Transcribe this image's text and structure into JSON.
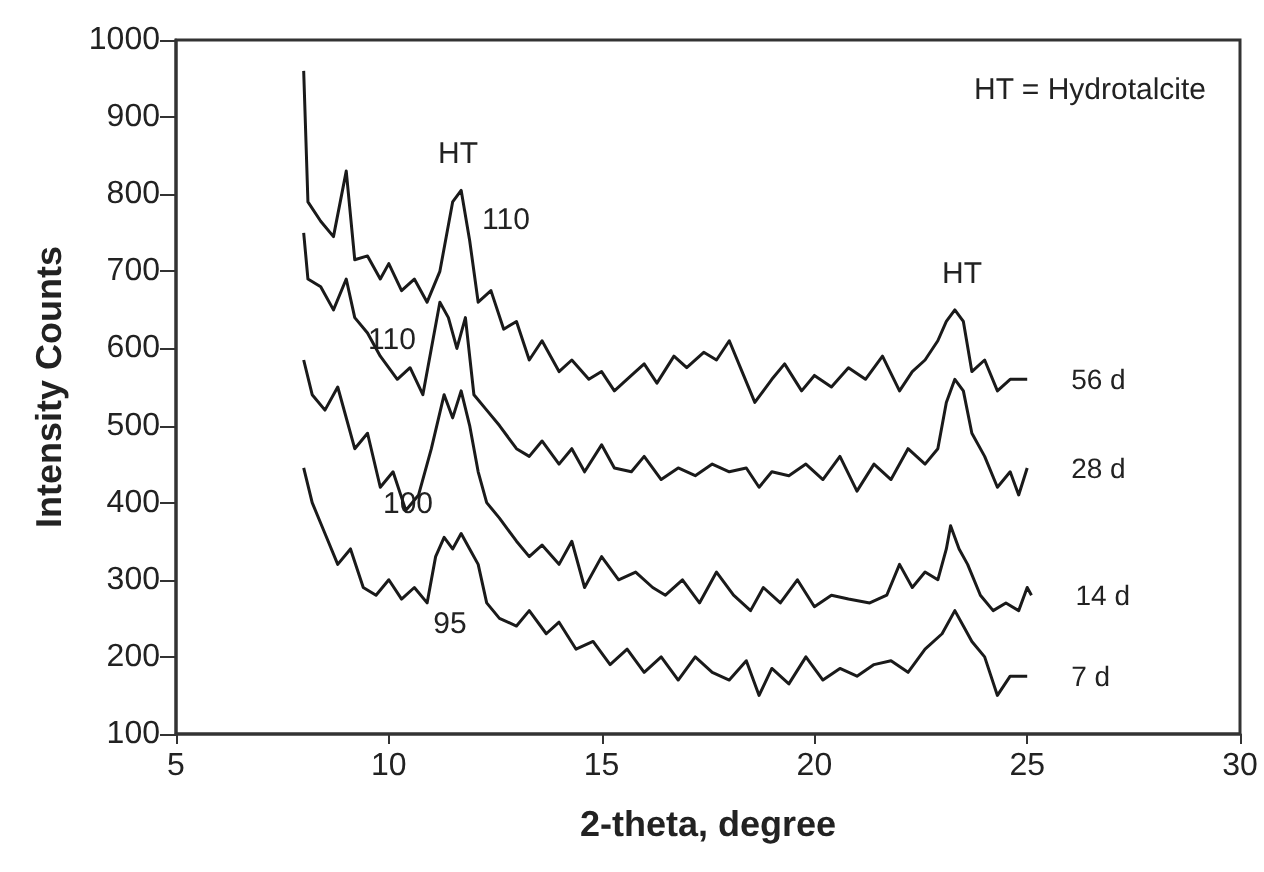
{
  "chart_data": {
    "type": "line",
    "xlabel": "2-theta, degree",
    "ylabel": "Intensity Counts",
    "xlim": [
      5,
      30
    ],
    "xticks": [
      5,
      10,
      15,
      20,
      25,
      30
    ],
    "ylim": [
      100,
      1000
    ],
    "yticks": [
      100,
      200,
      300,
      400,
      500,
      600,
      700,
      800,
      900,
      1000
    ],
    "grid": false,
    "legend": false,
    "marker": "none",
    "line_style": "solid",
    "annotations": [
      "HT = Hydrotalcite",
      "HT",
      "110",
      "110",
      "100",
      "95",
      "HT"
    ],
    "series": [
      {
        "name": "56 d",
        "color": "#1a1a1a",
        "x": [
          8.0,
          8.1,
          8.4,
          8.7,
          9.0,
          9.2,
          9.5,
          9.8,
          10.0,
          10.3,
          10.6,
          10.9,
          11.2,
          11.5,
          11.7,
          11.9,
          12.1,
          12.4,
          12.7,
          13.0,
          13.3,
          13.6,
          14.0,
          14.3,
          14.7,
          15.0,
          15.3,
          15.7,
          16.0,
          16.3,
          16.7,
          17.0,
          17.4,
          17.7,
          18.0,
          18.3,
          18.6,
          19.0,
          19.3,
          19.7,
          20.0,
          20.4,
          20.8,
          21.2,
          21.6,
          22.0,
          22.3,
          22.6,
          22.9,
          23.1,
          23.3,
          23.5,
          23.7,
          24.0,
          24.3,
          24.6,
          25.0
        ],
        "values": [
          960,
          790,
          765,
          745,
          830,
          715,
          720,
          690,
          710,
          675,
          690,
          660,
          700,
          790,
          805,
          740,
          660,
          675,
          625,
          635,
          585,
          610,
          570,
          585,
          560,
          570,
          545,
          565,
          580,
          555,
          590,
          575,
          595,
          585,
          610,
          570,
          530,
          560,
          580,
          545,
          565,
          550,
          575,
          560,
          590,
          545,
          570,
          585,
          610,
          635,
          650,
          635,
          570,
          585,
          545,
          560,
          560
        ]
      },
      {
        "name": "28 d",
        "color": "#1a1a1a",
        "x": [
          8.0,
          8.1,
          8.4,
          8.7,
          9.0,
          9.2,
          9.5,
          9.8,
          10.2,
          10.5,
          10.8,
          11.0,
          11.2,
          11.4,
          11.6,
          11.8,
          12.0,
          12.3,
          12.6,
          13.0,
          13.3,
          13.6,
          14.0,
          14.3,
          14.6,
          15.0,
          15.3,
          15.7,
          16.0,
          16.4,
          16.8,
          17.2,
          17.6,
          18.0,
          18.4,
          18.7,
          19.0,
          19.4,
          19.8,
          20.2,
          20.6,
          21.0,
          21.4,
          21.8,
          22.2,
          22.6,
          22.9,
          23.1,
          23.3,
          23.5,
          23.7,
          24.0,
          24.3,
          24.6,
          24.8,
          25.0
        ],
        "values": [
          750,
          690,
          680,
          650,
          690,
          640,
          620,
          590,
          560,
          575,
          540,
          600,
          660,
          640,
          600,
          640,
          540,
          520,
          500,
          470,
          460,
          480,
          450,
          470,
          440,
          475,
          445,
          440,
          460,
          430,
          445,
          435,
          450,
          440,
          445,
          420,
          440,
          435,
          450,
          430,
          460,
          415,
          450,
          430,
          470,
          450,
          470,
          530,
          560,
          545,
          490,
          460,
          420,
          440,
          410,
          445
        ]
      },
      {
        "name": "14 d",
        "color": "#1a1a1a",
        "x": [
          8.0,
          8.2,
          8.5,
          8.8,
          9.2,
          9.5,
          9.8,
          10.1,
          10.4,
          10.7,
          11.0,
          11.3,
          11.5,
          11.7,
          11.9,
          12.1,
          12.3,
          12.6,
          13.0,
          13.3,
          13.6,
          14.0,
          14.3,
          14.6,
          15.0,
          15.4,
          15.8,
          16.2,
          16.5,
          16.9,
          17.3,
          17.7,
          18.1,
          18.5,
          18.8,
          19.2,
          19.6,
          20.0,
          20.4,
          20.8,
          21.3,
          21.7,
          22.0,
          22.3,
          22.6,
          22.9,
          23.1,
          23.2,
          23.4,
          23.6,
          23.9,
          24.2,
          24.5,
          24.8,
          25.0,
          25.1
        ],
        "values": [
          585,
          540,
          520,
          550,
          470,
          490,
          420,
          440,
          390,
          410,
          470,
          540,
          510,
          545,
          500,
          440,
          400,
          380,
          350,
          330,
          345,
          320,
          350,
          290,
          330,
          300,
          310,
          290,
          280,
          300,
          270,
          310,
          280,
          260,
          290,
          270,
          300,
          265,
          280,
          275,
          270,
          280,
          320,
          290,
          310,
          300,
          340,
          370,
          340,
          320,
          280,
          260,
          270,
          260,
          290,
          280
        ]
      },
      {
        "name": "7 d",
        "color": "#1a1a1a",
        "x": [
          8.0,
          8.2,
          8.5,
          8.8,
          9.1,
          9.4,
          9.7,
          10.0,
          10.3,
          10.6,
          10.9,
          11.1,
          11.3,
          11.5,
          11.7,
          11.9,
          12.1,
          12.3,
          12.6,
          13.0,
          13.3,
          13.7,
          14.0,
          14.4,
          14.8,
          15.2,
          15.6,
          16.0,
          16.4,
          16.8,
          17.2,
          17.6,
          18.0,
          18.4,
          18.7,
          19.0,
          19.4,
          19.8,
          20.2,
          20.6,
          21.0,
          21.4,
          21.8,
          22.2,
          22.6,
          23.0,
          23.3,
          23.5,
          23.7,
          24.0,
          24.3,
          24.6,
          25.0
        ],
        "values": [
          445,
          400,
          360,
          320,
          340,
          290,
          280,
          300,
          275,
          290,
          270,
          330,
          355,
          340,
          360,
          340,
          320,
          270,
          250,
          240,
          260,
          230,
          245,
          210,
          220,
          190,
          210,
          180,
          200,
          170,
          200,
          180,
          170,
          195,
          150,
          185,
          165,
          200,
          170,
          185,
          175,
          190,
          195,
          180,
          210,
          230,
          260,
          240,
          220,
          200,
          150,
          175,
          175
        ]
      }
    ]
  }
}
